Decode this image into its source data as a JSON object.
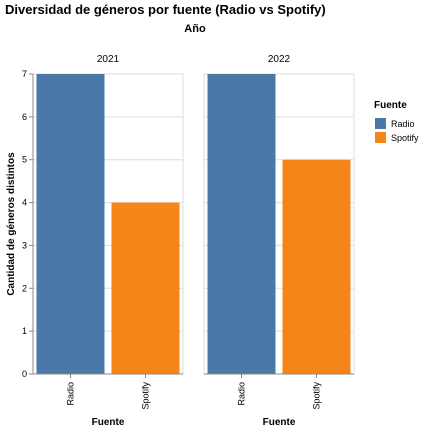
{
  "chart_data": {
    "type": "bar",
    "title": "Diversidad de géneros por fuente (Radio vs Spotify)",
    "facet_title": "Año",
    "xlabel": "Fuente",
    "ylabel": "Cantidad de géneros distintos",
    "ylim": [
      0,
      7
    ],
    "yticks": [
      0,
      1,
      2,
      3,
      4,
      5,
      6,
      7
    ],
    "grid": true,
    "legend": {
      "title": "Fuente",
      "placement": "right",
      "items": [
        {
          "label": "Radio",
          "color": "#4c78a8"
        },
        {
          "label": "Spotify",
          "color": "#f58518"
        }
      ]
    },
    "categories": [
      "Radio",
      "Spotify"
    ],
    "facets": [
      {
        "label": "2021",
        "values": [
          7,
          4
        ]
      },
      {
        "label": "2022",
        "values": [
          7,
          5
        ]
      }
    ]
  }
}
